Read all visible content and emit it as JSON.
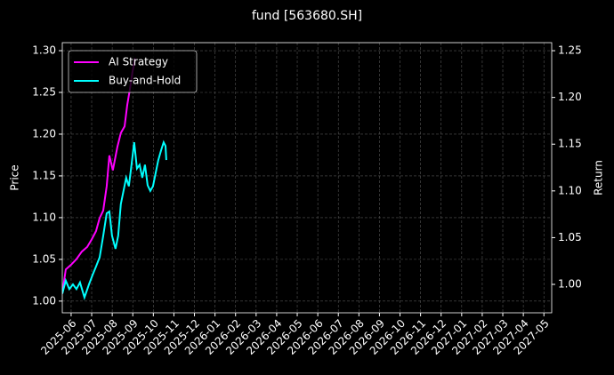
{
  "chart_data": {
    "type": "line",
    "title": "fund [563680.SH]",
    "ylabel": "Price",
    "y2label": "Return",
    "xlim": [
      -0.43,
      23.38
    ],
    "ylim": [
      0.986,
      1.3096
    ],
    "y2lim": [
      0.9696,
      1.2586
    ],
    "xticks": [
      {
        "value": 0,
        "label": "2025-06"
      },
      {
        "value": 1,
        "label": "2025-07"
      },
      {
        "value": 2,
        "label": "2025-08"
      },
      {
        "value": 3,
        "label": "2025-09"
      },
      {
        "value": 4,
        "label": "2025-10"
      },
      {
        "value": 5,
        "label": "2025-11"
      },
      {
        "value": 6,
        "label": "2025-12"
      },
      {
        "value": 7,
        "label": "2026-01"
      },
      {
        "value": 8,
        "label": "2026-02"
      },
      {
        "value": 9,
        "label": "2026-03"
      },
      {
        "value": 10,
        "label": "2026-04"
      },
      {
        "value": 11,
        "label": "2026-05"
      },
      {
        "value": 12,
        "label": "2026-06"
      },
      {
        "value": 13,
        "label": "2026-07"
      },
      {
        "value": 14,
        "label": "2026-08"
      },
      {
        "value": 15,
        "label": "2026-09"
      },
      {
        "value": 16,
        "label": "2026-10"
      },
      {
        "value": 17,
        "label": "2026-11"
      },
      {
        "value": 18,
        "label": "2026-12"
      },
      {
        "value": 19,
        "label": "2027-01"
      },
      {
        "value": 20,
        "label": "2027-02"
      },
      {
        "value": 21,
        "label": "2027-03"
      },
      {
        "value": 22,
        "label": "2027-04"
      },
      {
        "value": 23,
        "label": "2027-05"
      }
    ],
    "yticks": [
      {
        "value": 1.0,
        "label": "1.00"
      },
      {
        "value": 1.05,
        "label": "1.05"
      },
      {
        "value": 1.1,
        "label": "1.10"
      },
      {
        "value": 1.15,
        "label": "1.15"
      },
      {
        "value": 1.2,
        "label": "1.20"
      },
      {
        "value": 1.25,
        "label": "1.25"
      },
      {
        "value": 1.3,
        "label": "1.30"
      }
    ],
    "y2ticks": [
      {
        "value": 1.0,
        "label": "1.00"
      },
      {
        "value": 1.05,
        "label": "1.05"
      },
      {
        "value": 1.1,
        "label": "1.10"
      },
      {
        "value": 1.15,
        "label": "1.15"
      },
      {
        "value": 1.2,
        "label": "1.20"
      },
      {
        "value": 1.25,
        "label": "1.25"
      }
    ],
    "grid": true,
    "legend": "upper left",
    "series": [
      {
        "name": "AI Strategy",
        "color": "#ff00ff",
        "axis": "y2",
        "x": [
          -0.43,
          -0.26,
          0,
          0.26,
          0.52,
          0.78,
          1.0,
          1.21,
          1.39,
          1.56,
          1.73,
          1.86,
          2.03,
          2.25,
          2.42,
          2.6,
          2.73,
          2.86,
          2.99,
          3.12
        ],
        "values": [
          0.99,
          1.016,
          1.021,
          1.027,
          1.035,
          1.04,
          1.048,
          1.057,
          1.071,
          1.079,
          1.105,
          1.138,
          1.122,
          1.147,
          1.162,
          1.169,
          1.192,
          1.209,
          1.228,
          1.242
        ]
      },
      {
        "name": "Buy-and-Hold",
        "color": "#00ffff",
        "axis": "y2",
        "x": [
          -0.43,
          -0.26,
          -0.09,
          0.09,
          0.26,
          0.43,
          0.65,
          0.87,
          1.04,
          1.21,
          1.39,
          1.56,
          1.73,
          1.86,
          1.99,
          2.16,
          2.29,
          2.42,
          2.55,
          2.68,
          2.81,
          2.94,
          3.07,
          3.2,
          3.33,
          3.46,
          3.59,
          3.72,
          3.85,
          3.98,
          4.11,
          4.24,
          4.37,
          4.5,
          4.59,
          4.63
        ],
        "values": [
          0.99,
          1.004,
          0.995,
          1.0,
          0.995,
          1.002,
          0.986,
          1.0,
          1.01,
          1.019,
          1.029,
          1.052,
          1.076,
          1.078,
          1.052,
          1.038,
          1.052,
          1.086,
          1.1,
          1.114,
          1.105,
          1.128,
          1.152,
          1.124,
          1.128,
          1.114,
          1.128,
          1.106,
          1.1,
          1.105,
          1.119,
          1.133,
          1.143,
          1.152,
          1.148,
          1.133
        ]
      }
    ]
  }
}
